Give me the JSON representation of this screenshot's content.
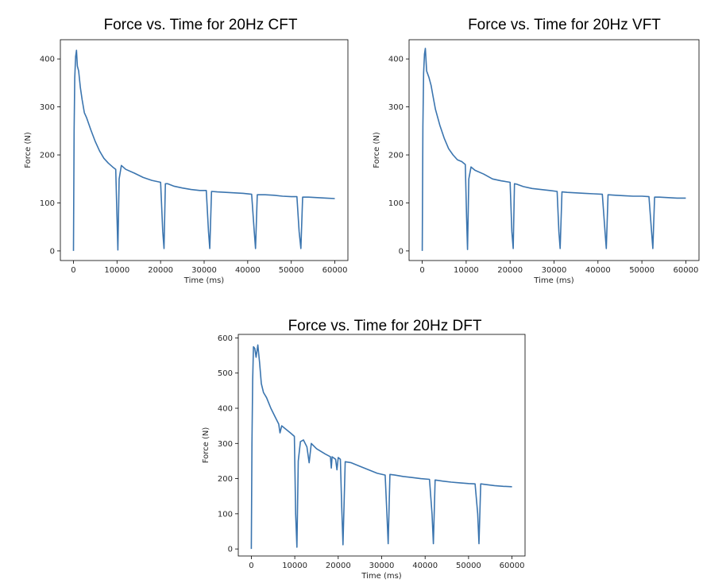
{
  "chart_data": [
    {
      "type": "line",
      "title": "Force vs. Time for 20Hz CFT",
      "xlabel": "Time (ms)",
      "ylabel": "Force (N)",
      "xlim": [
        -3000,
        63000
      ],
      "ylim": [
        -20,
        440
      ],
      "xticks": [
        0,
        10000,
        20000,
        30000,
        40000,
        50000,
        60000
      ],
      "yticks": [
        0,
        100,
        200,
        300,
        400
      ],
      "grid": false,
      "color": "#3b75af",
      "series": [
        {
          "x": [
            0,
            150,
            300,
            500,
            700,
            900,
            1200,
            1600,
            2000,
            2500,
            3000,
            4000,
            5000,
            6000,
            7000,
            8000,
            9000,
            9700,
            10000,
            10200,
            10500,
            11000,
            12000,
            14000,
            16000,
            18000,
            20000,
            20500,
            20800,
            21100,
            21600,
            23000,
            25000,
            27000,
            29000,
            30500,
            31000,
            31300,
            31700,
            33000,
            35000,
            37000,
            39000,
            40900,
            41500,
            41800,
            42200,
            44000,
            46000,
            48000,
            50000,
            51300,
            51800,
            52200,
            52600,
            54000,
            56000,
            58000,
            60000
          ],
          "y": [
            0,
            250,
            360,
            405,
            418,
            385,
            375,
            340,
            315,
            288,
            278,
            252,
            228,
            208,
            193,
            183,
            175,
            170,
            70,
            2,
            150,
            178,
            170,
            162,
            153,
            147,
            143,
            40,
            5,
            140,
            140,
            135,
            131,
            128,
            126,
            126,
            40,
            5,
            124,
            123,
            122,
            121,
            120,
            118,
            40,
            5,
            117,
            117,
            116,
            114,
            113,
            113,
            40,
            5,
            112,
            112,
            111,
            110,
            109
          ]
        }
      ]
    },
    {
      "type": "line",
      "title": "Force vs. Time for 20Hz VFT",
      "xlabel": "Time (ms)",
      "ylabel": "Force (N)",
      "xlim": [
        -3000,
        63000
      ],
      "ylim": [
        -20,
        440
      ],
      "xticks": [
        0,
        10000,
        20000,
        30000,
        40000,
        50000,
        60000
      ],
      "yticks": [
        0,
        100,
        200,
        300,
        400
      ],
      "grid": false,
      "color": "#3b75af",
      "series": [
        {
          "x": [
            0,
            150,
            300,
            500,
            700,
            1000,
            1500,
            2000,
            2500,
            3000,
            4000,
            5000,
            6000,
            7000,
            8000,
            9000,
            9800,
            10100,
            10300,
            10600,
            11100,
            12000,
            14000,
            16000,
            18000,
            20000,
            20400,
            20700,
            21000,
            21500,
            23000,
            25000,
            27000,
            29000,
            30700,
            31100,
            31400,
            31800,
            33000,
            35000,
            37000,
            39000,
            41000,
            41600,
            41900,
            42300,
            44000,
            46000,
            48000,
            50000,
            51600,
            52200,
            52500,
            52900,
            54000,
            56000,
            58000,
            60000
          ],
          "y": [
            0,
            260,
            370,
            410,
            422,
            375,
            362,
            345,
            320,
            295,
            262,
            235,
            213,
            200,
            190,
            186,
            180,
            70,
            3,
            150,
            175,
            168,
            160,
            150,
            146,
            143,
            40,
            5,
            140,
            139,
            134,
            130,
            128,
            126,
            124,
            40,
            5,
            123,
            122,
            121,
            120,
            119,
            118,
            40,
            5,
            117,
            116,
            115,
            114,
            114,
            113,
            40,
            5,
            112,
            112,
            111,
            110,
            110
          ]
        }
      ]
    },
    {
      "type": "line",
      "title": "Force vs. Time for 20Hz DFT",
      "xlabel": "Time (ms)",
      "ylabel": "Force (N)",
      "xlim": [
        -3000,
        63000
      ],
      "ylim": [
        -20,
        610
      ],
      "xticks": [
        0,
        10000,
        20000,
        30000,
        40000,
        50000,
        60000
      ],
      "yticks": [
        0,
        100,
        200,
        300,
        400,
        500,
        600
      ],
      "grid": false,
      "color": "#3b75af",
      "series": [
        {
          "x": [
            0,
            150,
            300,
            500,
            800,
            1100,
            1500,
            1900,
            2300,
            2800,
            3500,
            4500,
            5500,
            6300,
            6600,
            7000,
            8000,
            9000,
            9900,
            10200,
            10500,
            10800,
            11300,
            12000,
            12800,
            13300,
            13800,
            15000,
            17000,
            18200,
            18400,
            18600,
            19400,
            19700,
            20000,
            20500,
            20800,
            21100,
            21600,
            23000,
            25000,
            27000,
            29000,
            30800,
            31200,
            31500,
            31900,
            33000,
            35000,
            37000,
            39000,
            41000,
            41600,
            41900,
            42300,
            44000,
            46000,
            48000,
            50000,
            51500,
            52100,
            52400,
            52800,
            54000,
            56000,
            58000,
            60000
          ],
          "y": [
            0,
            300,
            480,
            575,
            570,
            545,
            580,
            530,
            470,
            445,
            430,
            400,
            375,
            355,
            330,
            350,
            340,
            330,
            320,
            100,
            5,
            250,
            305,
            310,
            290,
            245,
            300,
            285,
            270,
            262,
            230,
            262,
            255,
            225,
            260,
            255,
            120,
            12,
            248,
            245,
            235,
            225,
            215,
            210,
            100,
            15,
            212,
            210,
            206,
            203,
            200,
            198,
            100,
            15,
            196,
            193,
            190,
            188,
            186,
            185,
            100,
            15,
            185,
            183,
            180,
            178,
            177
          ]
        }
      ]
    }
  ]
}
